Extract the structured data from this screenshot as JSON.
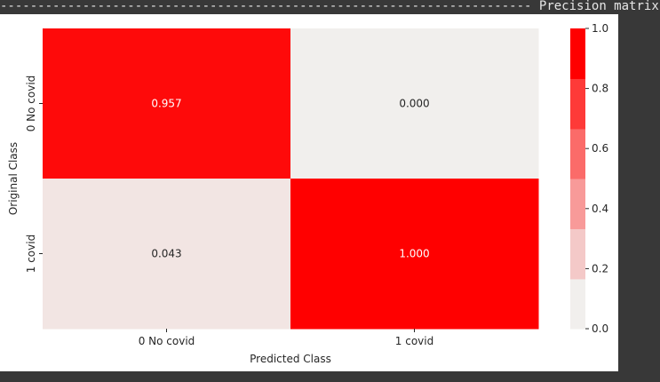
{
  "header": {
    "dashes_left": "-----------------------------------------------------------------------",
    "title": "Precision matrix",
    "dashes_right": "--------"
  },
  "colors": {
    "high": "#ff0000",
    "low": "#f1efed",
    "page_background": "#383838",
    "figure_background": "#ffffff"
  },
  "chart_data": {
    "type": "heatmap",
    "xlabel": "Predicted Class",
    "ylabel": "Original Class",
    "x_categories": [
      "0 No covid",
      "1 covid"
    ],
    "y_categories": [
      "0 No covid",
      "1 covid"
    ],
    "values": [
      [
        0.957,
        0.0
      ],
      [
        0.043,
        1.0
      ]
    ],
    "value_labels": [
      [
        "0.957",
        "0.000"
      ],
      [
        "0.043",
        "1.000"
      ]
    ],
    "colorbar": {
      "range": [
        0.0,
        1.0
      ],
      "ticks": [
        0.0,
        0.2,
        0.4,
        0.6,
        0.8,
        1.0
      ],
      "tick_labels": [
        "0.0",
        "0.2",
        "0.4",
        "0.6",
        "0.8",
        "1.0"
      ],
      "bands": [
        {
          "from": 0.0,
          "to": 0.166,
          "color": "#f1efed"
        },
        {
          "from": 0.166,
          "to": 0.333,
          "color": "#f4c9c8"
        },
        {
          "from": 0.333,
          "to": 0.5,
          "color": "#f89a99"
        },
        {
          "from": 0.5,
          "to": 0.666,
          "color": "#fb6b69"
        },
        {
          "from": 0.666,
          "to": 0.833,
          "color": "#fe3a38"
        },
        {
          "from": 0.833,
          "to": 1.0,
          "color": "#ff0000"
        }
      ]
    }
  }
}
